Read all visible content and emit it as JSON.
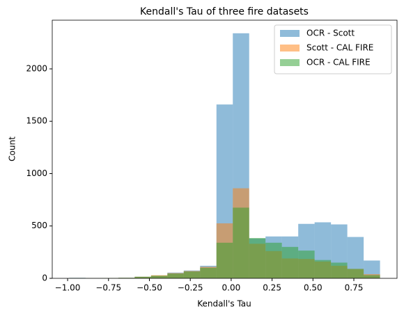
{
  "chart_data": {
    "type": "histogram",
    "title": "Kendall's Tau of three fire datasets",
    "x_label": "Kendall's Tau",
    "y_label": "Count",
    "bins": [
      -0.99,
      -0.89,
      -0.79,
      -0.69,
      -0.59,
      -0.49,
      -0.39,
      -0.29,
      -0.19,
      -0.09,
      0.01,
      0.11,
      0.21,
      0.31,
      0.41,
      0.51,
      0.61,
      0.71,
      0.81,
      0.91
    ],
    "series": [
      {
        "name": "OCR - Scott",
        "color": "#1f77b4",
        "values": [
          5,
          3,
          3,
          5,
          15,
          25,
          55,
          75,
          120,
          1660,
          2340,
          380,
          400,
          400,
          520,
          535,
          515,
          395,
          170
        ]
      },
      {
        "name": "Scott - CAL FIRE",
        "color": "#ff7f0e",
        "values": [
          3,
          2,
          3,
          5,
          15,
          30,
          50,
          70,
          110,
          525,
          860,
          330,
          260,
          190,
          185,
          160,
          120,
          90,
          40
        ]
      },
      {
        "name": "OCR - CAL FIRE",
        "color": "#2ca02c",
        "values": [
          3,
          2,
          3,
          5,
          15,
          25,
          45,
          65,
          100,
          340,
          675,
          385,
          340,
          300,
          265,
          175,
          150,
          90,
          30
        ]
      }
    ],
    "opacity": 0.5,
    "xlim": [
      -1.094,
      1.014
    ],
    "ylim": [
      0,
      2465
    ],
    "xticks": [
      {
        "value": -1.0,
        "label": "−1.00"
      },
      {
        "value": -0.75,
        "label": "−0.75"
      },
      {
        "value": -0.5,
        "label": "−0.50"
      },
      {
        "value": -0.25,
        "label": "−0.25"
      },
      {
        "value": 0.0,
        "label": "0.00"
      },
      {
        "value": 0.25,
        "label": "0.25"
      },
      {
        "value": 0.5,
        "label": "0.50"
      },
      {
        "value": 0.75,
        "label": "0.75"
      }
    ],
    "yticks": [
      0,
      500,
      1000,
      1500,
      2000
    ],
    "legend": "upper right"
  }
}
